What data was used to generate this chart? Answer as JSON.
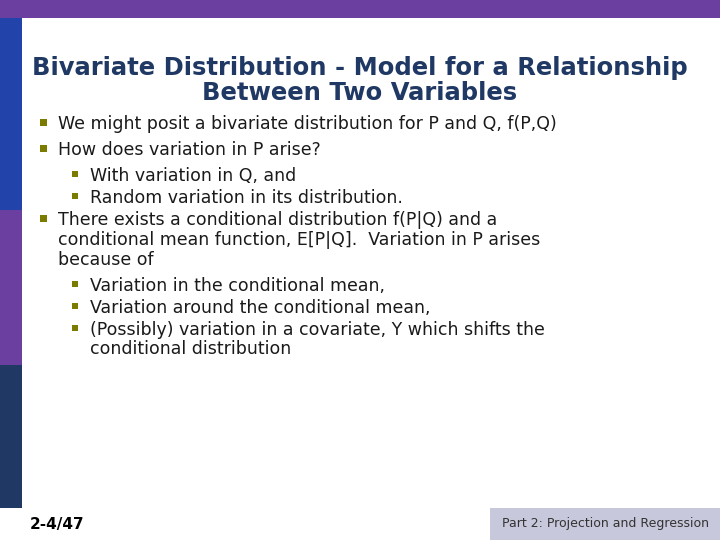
{
  "title_line1": "Bivariate Distribution - Model for a Relationship",
  "title_line2": "Between Two Variables",
  "title_color": "#1F3864",
  "title_fontsize": 17.5,
  "body_fontsize": 12.5,
  "bullet_color_l1": "#7B7B00",
  "bullet_color_l2": "#7B7B00",
  "text_color": "#1a1a1a",
  "background_color": "#FFFFFF",
  "top_bar_color": "#6B3FA0",
  "left_bar_top_color": "#2244AA",
  "left_bar_mid_color": "#6B3FA0",
  "left_bar_bot_color": "#1F3864",
  "footer_gray_color": "#C8C8DC",
  "slide_number": "2-4/47",
  "footer_right": "Part 2: Projection and Regression",
  "slide_number_fontsize": 11,
  "footer_fontsize": 9,
  "bullets": [
    {
      "level": 1,
      "lines": [
        "We might posit a bivariate distribution for P and Q, f(P,Q)"
      ]
    },
    {
      "level": 1,
      "lines": [
        "How does variation in P arise?"
      ]
    },
    {
      "level": 2,
      "lines": [
        "With variation in Q, and"
      ]
    },
    {
      "level": 2,
      "lines": [
        "Random variation in its distribution."
      ]
    },
    {
      "level": 1,
      "lines": [
        "There exists a conditional distribution f(P|Q) and a",
        "conditional mean function, E[P|Q].  Variation in P arises",
        "because of"
      ]
    },
    {
      "level": 2,
      "lines": [
        "Variation in the conditional mean,"
      ]
    },
    {
      "level": 2,
      "lines": [
        "Variation around the conditional mean,"
      ]
    },
    {
      "level": 2,
      "lines": [
        "(Possibly) variation in a covariate, Y which shifts the",
        "conditional distribution"
      ]
    }
  ]
}
